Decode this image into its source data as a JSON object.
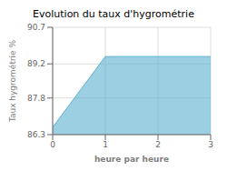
{
  "chart_data": {
    "type": "area",
    "title": "Evolution du taux d'hygrométrie",
    "xlabel": "heure par heure",
    "ylabel": "Taux hygrométrie %",
    "x": [
      0,
      1,
      3
    ],
    "values": [
      86.6,
      89.5,
      89.5
    ],
    "xlim": [
      0,
      3
    ],
    "ylim": [
      86.3,
      90.7
    ],
    "xticks": [
      0,
      1,
      2,
      3
    ],
    "yticks": [
      86.3,
      87.8,
      89.2,
      90.7
    ],
    "color": "#5aafcf",
    "grid": true
  }
}
